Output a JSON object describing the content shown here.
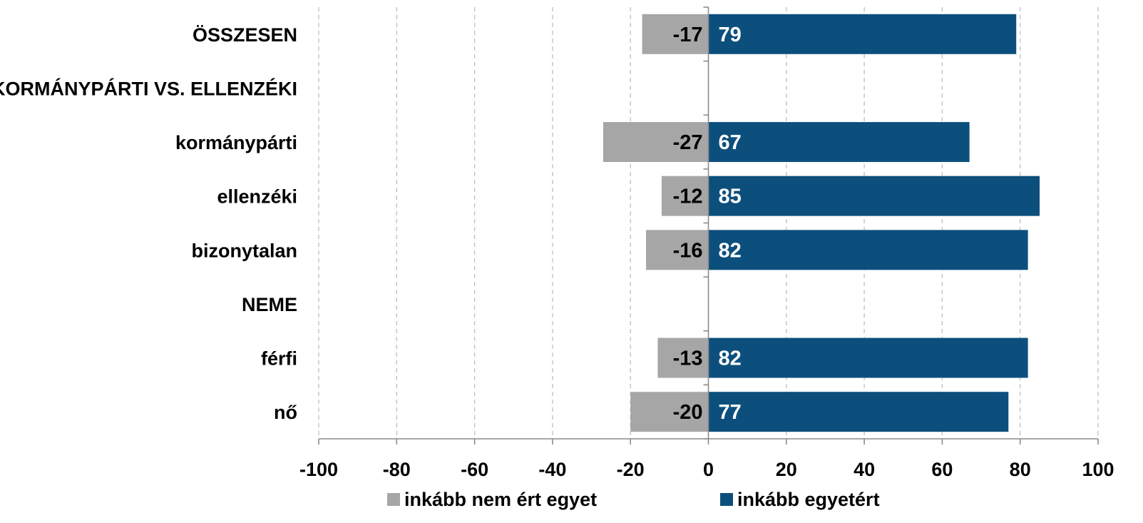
{
  "chart_data": {
    "type": "bar",
    "orientation": "horizontal",
    "stacking": "diverging",
    "categories": [
      "ÖSSZESEN",
      "KORMÁNYPÁRTI VS. ELLENZÉKI",
      "kormánypárti",
      "ellenzéki",
      "bizonytalan",
      "NEME",
      "férfi",
      "nő"
    ],
    "series": [
      {
        "name": "inkább nem ért egyet",
        "color": "#a6a6a6",
        "label_color": "#000000",
        "values": [
          -17,
          null,
          -27,
          -12,
          -16,
          null,
          -13,
          -20
        ]
      },
      {
        "name": "inkább egyetért",
        "color": "#0d4f7c",
        "label_color": "#ffffff",
        "values": [
          79,
          null,
          67,
          85,
          82,
          null,
          82,
          77
        ]
      }
    ],
    "xlim": [
      -100,
      100
    ],
    "xticks": [
      -100,
      -80,
      -60,
      -40,
      -20,
      0,
      20,
      40,
      60,
      80,
      100
    ],
    "grid": "vertical-dashed",
    "data_labels": true,
    "legend_position": "bottom"
  }
}
